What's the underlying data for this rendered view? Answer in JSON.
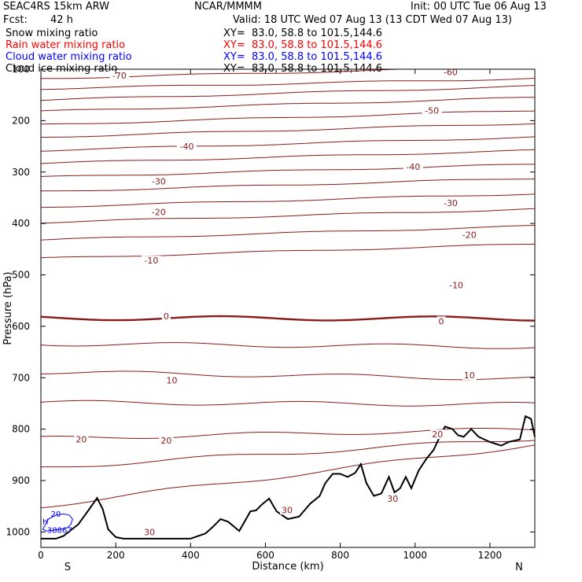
{
  "header": {
    "model": "SEAC4RS 15km ARW",
    "center": "NCAR/MMMM",
    "init": "Init: 00 UTC Tue 06 Aug 13",
    "fcst_label": "Fcst:",
    "fcst_value": "42 h",
    "valid": "Valid: 18 UTC Wed 07 Aug 13 (13 CDT Wed 07 Aug 13)"
  },
  "fields": [
    {
      "name": "Snow mixing ratio",
      "xy": "XY=  83.0, 58.8 to 101.5,144.6",
      "color": "#000000"
    },
    {
      "name": "Rain water mixing ratio",
      "xy": "XY=  83.0, 58.8 to 101.5,144.6",
      "color": "#ff0000"
    },
    {
      "name": "Cloud water mixing ratio",
      "xy": "XY=  83.0, 58.8 to 101.5,144.6",
      "color": "#0000ff"
    },
    {
      "name": "Cloud ice mixing ratio",
      "xy": "XY=  83.0, 58.8 to 101.5,144.6",
      "color": "#000000"
    }
  ],
  "chart_data": {
    "type": "line",
    "title": "",
    "xlabel": "Distance (km)",
    "ylabel": "Pressure (hPa)",
    "xlim": [
      0,
      1320
    ],
    "ylim": [
      1030,
      100
    ],
    "x_ticks": [
      0,
      200,
      400,
      600,
      800,
      1000,
      1200
    ],
    "y_ticks": [
      100,
      200,
      300,
      400,
      500,
      600,
      700,
      800,
      900,
      1000
    ],
    "x_end_labels": {
      "left": "S",
      "right": "N"
    },
    "temperature_isotherm_color": "#8b1a1a",
    "terrain_color": "#000000",
    "isotherms": [
      {
        "value": -70,
        "p_left": 118,
        "p_right": 95
      },
      {
        "value": -65,
        "p_left": 138,
        "p_right": 118
      },
      {
        "value": -60,
        "p_left": 160,
        "p_right": 133
      },
      {
        "value": -55,
        "p_left": 182,
        "p_right": 155
      },
      {
        "value": -50,
        "p_left": 208,
        "p_right": 180
      },
      {
        "value": -45,
        "p_left": 232,
        "p_right": 205
      },
      {
        "value": -40,
        "p_left": 258,
        "p_right": 232
      },
      {
        "value": -35,
        "p_left": 283,
        "p_right": 258
      },
      {
        "value": -30,
        "p_left": 310,
        "p_right": 285
      },
      {
        "value": -25,
        "p_left": 338,
        "p_right": 312
      },
      {
        "value": -20,
        "p_left": 368,
        "p_right": 342
      },
      {
        "value": -15,
        "p_left": 398,
        "p_right": 372
      },
      {
        "value": -10,
        "p_left": 432,
        "p_right": 405
      },
      {
        "value": -5,
        "p_left": 468,
        "p_right": 440
      },
      {
        "value": 0,
        "p_left": 584,
        "p_right": 585
      },
      {
        "value": 5,
        "p_left": 634,
        "p_right": 640
      },
      {
        "value": 10,
        "p_left": 689,
        "p_right": 702
      },
      {
        "value": 15,
        "p_left": 748,
        "p_right": 752
      },
      {
        "value": 20,
        "p_left": 818,
        "p_right": 800
      },
      {
        "value": 25,
        "p_left": 875,
        "p_right": 818
      },
      {
        "value": 30,
        "p_left": 950,
        "p_right": 830
      }
    ],
    "contour_labels": [
      {
        "text": "-70",
        "x": 210,
        "p": 112
      },
      {
        "text": "-60",
        "x": 1095,
        "p": 105
      },
      {
        "text": "-50",
        "x": 1045,
        "p": 180
      },
      {
        "text": "-40",
        "x": 390,
        "p": 250
      },
      {
        "text": "-40",
        "x": 995,
        "p": 290
      },
      {
        "text": "-30",
        "x": 315,
        "p": 318
      },
      {
        "text": "-30",
        "x": 1095,
        "p": 360
      },
      {
        "text": "-20",
        "x": 315,
        "p": 378
      },
      {
        "text": "-20",
        "x": 1145,
        "p": 422
      },
      {
        "text": "-10",
        "x": 295,
        "p": 472
      },
      {
        "text": "-10",
        "x": 1110,
        "p": 520
      },
      {
        "text": "0",
        "x": 335,
        "p": 580
      },
      {
        "text": "0",
        "x": 1070,
        "p": 590
      },
      {
        "text": "10",
        "x": 350,
        "p": 705
      },
      {
        "text": "10",
        "x": 1145,
        "p": 695
      },
      {
        "text": "20",
        "x": 108,
        "p": 820
      },
      {
        "text": "20",
        "x": 335,
        "p": 822
      },
      {
        "text": "20",
        "x": 1060,
        "p": 810
      },
      {
        "text": "30",
        "x": 290,
        "p": 1000
      },
      {
        "text": "30",
        "x": 658,
        "p": 957
      },
      {
        "text": "30",
        "x": 940,
        "p": 935
      }
    ],
    "terrain": {
      "x": [
        0,
        40,
        60,
        100,
        130,
        150,
        165,
        180,
        200,
        220,
        300,
        400,
        440,
        460,
        480,
        500,
        530,
        560,
        575,
        590,
        610,
        630,
        660,
        690,
        720,
        745,
        760,
        780,
        800,
        820,
        840,
        855,
        870,
        890,
        910,
        930,
        945,
        960,
        975,
        990,
        1010,
        1030,
        1050,
        1070,
        1080,
        1100,
        1115,
        1130,
        1150,
        1170,
        1200,
        1230,
        1250,
        1280,
        1295,
        1310,
        1320
      ],
      "p": [
        1013,
        1013,
        1008,
        985,
        955,
        934,
        955,
        995,
        1010,
        1013,
        1013,
        1013,
        1003,
        990,
        975,
        980,
        998,
        960,
        958,
        947,
        935,
        960,
        975,
        970,
        945,
        930,
        905,
        887,
        887,
        893,
        885,
        868,
        905,
        930,
        925,
        893,
        923,
        915,
        893,
        915,
        880,
        858,
        840,
        808,
        795,
        800,
        812,
        815,
        800,
        815,
        825,
        832,
        825,
        820,
        775,
        780,
        815
      ]
    },
    "cloud_water": {
      "label": "20",
      "marker": "H",
      "marker_value": "38867",
      "x": [
        5,
        20,
        40,
        60,
        75,
        85,
        80,
        70,
        50,
        30,
        15,
        5
      ],
      "p": [
        995,
        975,
        967,
        965,
        967,
        975,
        985,
        992,
        995,
        997,
        998,
        995
      ]
    }
  }
}
